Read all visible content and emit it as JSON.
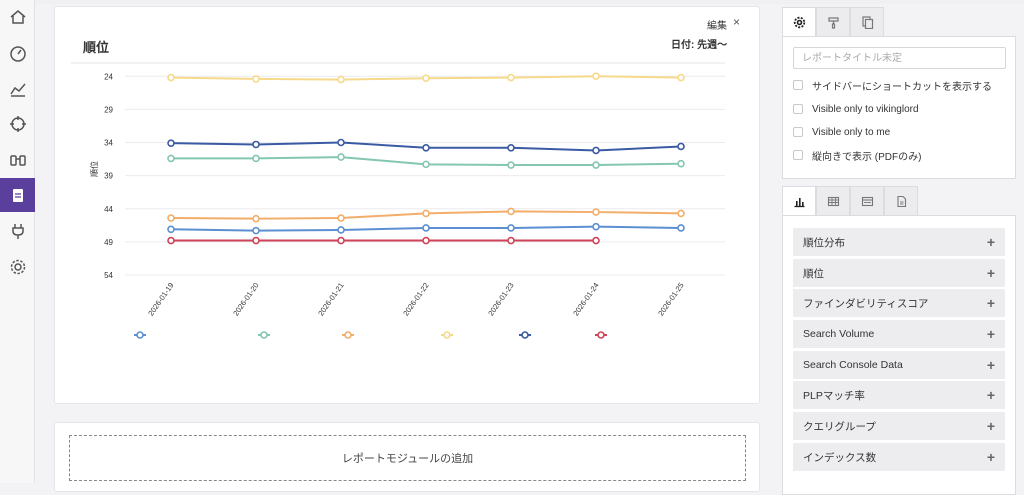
{
  "rail": {
    "items": [
      {
        "name": "home-icon"
      },
      {
        "name": "dashboard-icon"
      },
      {
        "name": "trend-chart-icon"
      },
      {
        "name": "crosshair-icon"
      },
      {
        "name": "binoculars-icon"
      },
      {
        "name": "report-clipboard-icon",
        "active": true
      },
      {
        "name": "plug-icon"
      },
      {
        "name": "settings-gear-icon"
      }
    ],
    "active_color": "#5b3f9c"
  },
  "report_card": {
    "title": "順位",
    "edit_label": "編集",
    "close_label": "×",
    "date_label": "日付: 先週〜"
  },
  "chart_data": {
    "type": "line",
    "title": "",
    "xlabel": "",
    "ylabel": "順位",
    "y_inverted": true,
    "ylim": [
      22,
      54
    ],
    "yticks": [
      24,
      29,
      34,
      39,
      44,
      49,
      54
    ],
    "x": [
      "2026-01-19",
      "2026-01-20",
      "2026-01-21",
      "2026-01-22",
      "2026-01-23",
      "2026-01-24",
      "2026-01-25"
    ],
    "grid": true,
    "legend_placement": "bottom",
    "series": [
      {
        "color": "#f6d98a",
        "values": [
          24.2,
          24.4,
          24.5,
          24.3,
          24.2,
          24.0,
          24.2
        ]
      },
      {
        "color": "#3a5aa3",
        "values": [
          34.1,
          34.3,
          34.0,
          34.8,
          34.8,
          35.2,
          34.6
        ]
      },
      {
        "color": "#84c7ae",
        "values": [
          36.4,
          36.4,
          36.2,
          37.3,
          37.4,
          37.4,
          37.2
        ]
      },
      {
        "color": "#f3ad6b",
        "values": [
          45.4,
          45.5,
          45.4,
          44.7,
          44.4,
          44.5,
          44.7
        ]
      },
      {
        "color": "#5b8fd1",
        "values": [
          47.1,
          47.3,
          47.2,
          46.9,
          46.9,
          46.7,
          46.9
        ]
      },
      {
        "color": "#d04357",
        "values": [
          48.8,
          48.8,
          48.8,
          48.8,
          48.8,
          48.8,
          null
        ]
      }
    ]
  },
  "add_module": {
    "label": "レポートモジュールの追加"
  },
  "settings": {
    "tabs": [
      {
        "name": "gear-icon",
        "active": true
      },
      {
        "name": "paint-roller-icon"
      },
      {
        "name": "copy-icon"
      }
    ],
    "title_placeholder": "レポートタイトル未定",
    "options": [
      {
        "label": "サイドバーにショートカットを表示する"
      },
      {
        "label": "Visible only to vikinglord"
      },
      {
        "label": "Visible only to me"
      },
      {
        "label": "縦向きで表示 (PDFのみ)"
      }
    ]
  },
  "modules": {
    "tabs": [
      {
        "name": "bar-chart-icon",
        "active": true
      },
      {
        "name": "table-icon"
      },
      {
        "name": "card-icon"
      },
      {
        "name": "pdf-file-icon"
      }
    ],
    "items": [
      {
        "label": "順位分布"
      },
      {
        "label": "順位"
      },
      {
        "label": "ファインダビリティスコア"
      },
      {
        "label": "Search Volume"
      },
      {
        "label": "Search Console Data"
      },
      {
        "label": "PLPマッチ率"
      },
      {
        "label": "クエリグループ"
      },
      {
        "label": "インデックス数"
      }
    ],
    "add_symbol": "+"
  }
}
